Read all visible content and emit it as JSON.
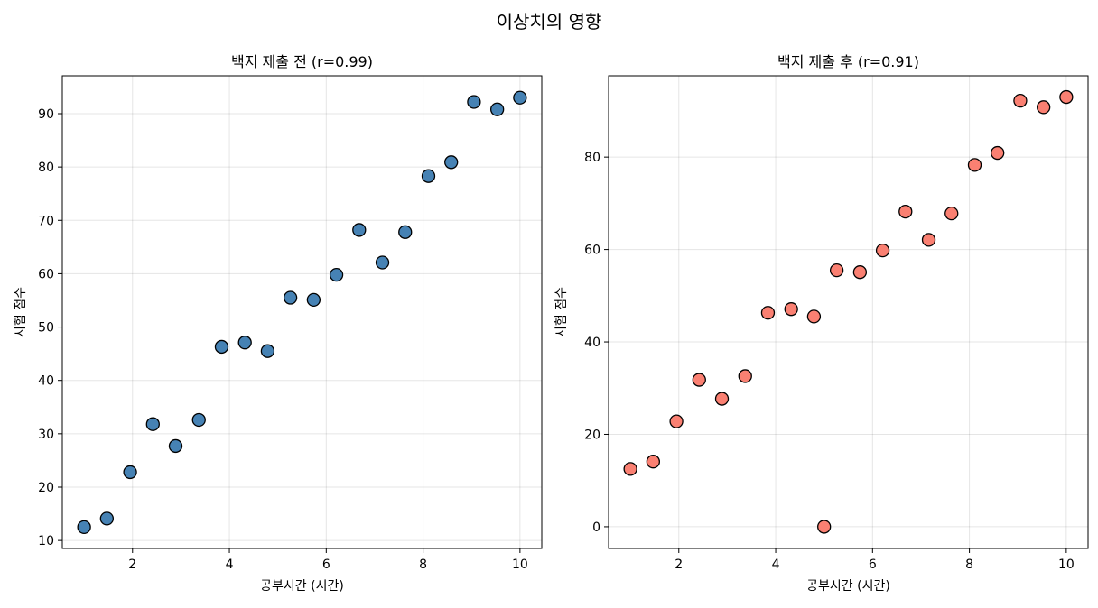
{
  "suptitle": "이상치의 영향",
  "chart_data": [
    {
      "type": "scatter",
      "title": "백지 제출 전 (r=0.99)",
      "xlabel": "공부시간 (시간)",
      "ylabel": "시험 점수",
      "xlim": [
        0.55,
        10.45
      ],
      "ylim": [
        8.5,
        97.1
      ],
      "xticks": [
        2,
        4,
        6,
        8,
        10
      ],
      "yticks": [
        10,
        20,
        30,
        40,
        50,
        60,
        70,
        80,
        90
      ],
      "grid": true,
      "color": "#4682b4",
      "edgecolor": "#000000",
      "x": [
        1.0,
        1.47,
        1.95,
        2.42,
        2.89,
        3.37,
        3.84,
        4.32,
        4.79,
        5.26,
        5.74,
        6.21,
        6.68,
        7.16,
        7.63,
        8.11,
        8.58,
        9.05,
        9.53,
        10.0
      ],
      "y": [
        12.5,
        14.1,
        22.8,
        31.8,
        27.7,
        32.6,
        46.3,
        47.1,
        45.5,
        55.5,
        55.1,
        59.8,
        68.2,
        62.1,
        67.8,
        78.3,
        80.9,
        92.2,
        90.8,
        93.0
      ]
    },
    {
      "type": "scatter",
      "title": "백지 제출 후 (r=0.91)",
      "xlabel": "공부시간 (시간)",
      "ylabel": "시험 점수",
      "xlim": [
        0.55,
        10.45
      ],
      "ylim": [
        -4.7,
        97.6
      ],
      "xticks": [
        2,
        4,
        6,
        8,
        10
      ],
      "yticks": [
        0,
        20,
        40,
        60,
        80
      ],
      "grid": true,
      "color": "#fa8072",
      "edgecolor": "#000000",
      "x": [
        1.0,
        1.47,
        1.95,
        2.42,
        2.89,
        3.37,
        3.84,
        4.32,
        4.79,
        5.26,
        5.74,
        6.21,
        6.68,
        7.16,
        7.63,
        8.11,
        8.58,
        9.05,
        9.53,
        10.0,
        5.0
      ],
      "y": [
        12.5,
        14.1,
        22.8,
        31.8,
        27.7,
        32.6,
        46.3,
        47.1,
        45.5,
        55.5,
        55.1,
        59.8,
        68.2,
        62.1,
        67.8,
        78.3,
        80.9,
        92.2,
        90.8,
        93.0,
        0
      ]
    }
  ]
}
